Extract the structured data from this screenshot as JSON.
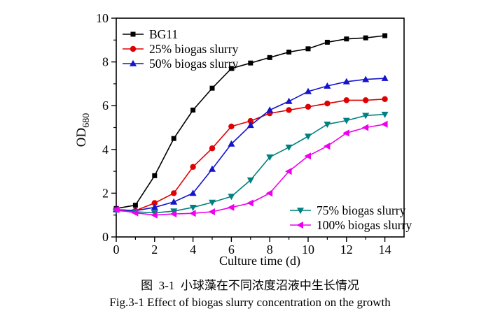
{
  "chart_data": {
    "type": "line",
    "title_zh": "图  3-1  小球藻在不同浓度沼液中生长情况",
    "title_en": "Fig.3-1 Effect of biogas slurry concentration on the growth",
    "xlabel": "Culture time (d)",
    "ylabel": "OD680",
    "ylabel_main": "OD",
    "ylabel_sub": "680",
    "xlim": [
      0,
      15
    ],
    "ylim": [
      0,
      10
    ],
    "grid": false,
    "axis_color": "#000000",
    "x": [
      0,
      1,
      2,
      3,
      4,
      5,
      6,
      7,
      8,
      9,
      10,
      11,
      12,
      13,
      14
    ],
    "x_major_ticks": [
      0,
      2,
      4,
      6,
      8,
      10,
      12,
      14
    ],
    "x_minor_ticks": [
      1,
      3,
      5,
      7,
      9,
      11,
      13
    ],
    "y_major_ticks": [
      0,
      2,
      4,
      6,
      8,
      10
    ],
    "y_minor_ticks": [
      1,
      3,
      5,
      7,
      9
    ],
    "legend": {
      "boxed": false,
      "top_left": [
        "BG11",
        "25% biogas slurry",
        "50% biogas slurry"
      ],
      "bottom_right": [
        "75% biogas slurry",
        "100% biogas slurry"
      ]
    },
    "series": [
      {
        "id": "bg11",
        "name": "BG11",
        "color": "#000000",
        "marker": "square",
        "values": [
          1.3,
          1.45,
          2.8,
          4.5,
          5.8,
          6.8,
          7.7,
          7.95,
          8.2,
          8.45,
          8.6,
          8.9,
          9.05,
          9.1,
          9.2
        ]
      },
      {
        "id": "slurry25",
        "name": "25% biogas slurry",
        "color": "#e00000",
        "marker": "circle",
        "values": [
          1.25,
          1.2,
          1.55,
          2.0,
          3.2,
          4.05,
          5.05,
          5.3,
          5.65,
          5.8,
          5.95,
          6.1,
          6.25,
          6.25,
          6.3
        ]
      },
      {
        "id": "slurry50",
        "name": "50% biogas slurry",
        "color": "#1414cc",
        "marker": "triangle-up",
        "values": [
          1.25,
          1.2,
          1.35,
          1.6,
          2.0,
          3.1,
          4.25,
          5.1,
          5.8,
          6.2,
          6.65,
          6.9,
          7.1,
          7.2,
          7.25
        ]
      },
      {
        "id": "slurry75",
        "name": "75% biogas slurry",
        "color": "#008080",
        "marker": "triangle-down",
        "values": [
          1.2,
          1.15,
          1.1,
          1.18,
          1.35,
          1.58,
          1.85,
          2.6,
          3.65,
          4.1,
          4.6,
          5.15,
          5.32,
          5.55,
          5.6
        ]
      },
      {
        "id": "slurry100",
        "name": "100% biogas slurry",
        "color": "#ee00ee",
        "marker": "triangle-left",
        "values": [
          1.25,
          1.1,
          1.0,
          1.05,
          1.08,
          1.15,
          1.35,
          1.55,
          2.0,
          3.0,
          3.7,
          4.15,
          4.75,
          5.0,
          5.15
        ]
      }
    ]
  }
}
